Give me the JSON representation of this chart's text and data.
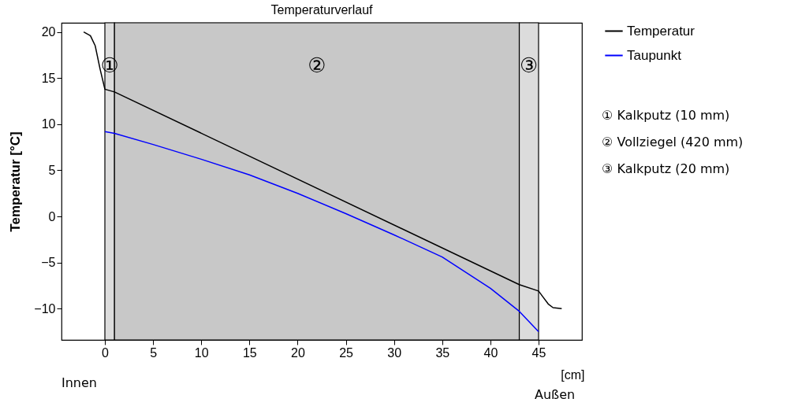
{
  "chart_data": {
    "type": "line",
    "title": "Temperaturverlauf",
    "xlabel": "[cm]",
    "ylabel": "Temperatur [°C]",
    "xlim": [
      -4.5,
      49.5
    ],
    "ylim": [
      -13.4,
      21
    ],
    "xticks": [
      0,
      5,
      10,
      15,
      20,
      25,
      30,
      35,
      40,
      45
    ],
    "yticks": [
      -10,
      -5,
      0,
      5,
      10,
      15,
      20
    ],
    "series": [
      {
        "name": "Temperatur",
        "color": "#000000",
        "x": [
          -2.2,
          -1.5,
          -1,
          -0.5,
          0,
          1,
          43,
          45,
          45.5,
          46,
          46.5,
          47.4
        ],
        "values": [
          20,
          19.6,
          18.5,
          16,
          13.8,
          13.5,
          -7.4,
          -8.1,
          -8.8,
          -9.5,
          -9.9,
          -10
        ]
      },
      {
        "name": "Taupunkt",
        "color": "#0000ff",
        "x": [
          0,
          1,
          5,
          10,
          15,
          20,
          25,
          30,
          35,
          40,
          43,
          45
        ],
        "values": [
          9.2,
          9,
          7.8,
          6.2,
          4.5,
          2.5,
          0.3,
          -2.0,
          -4.4,
          -7.8,
          -10.3,
          -12.5
        ]
      }
    ],
    "bands": [
      {
        "axis": "x",
        "from": 0,
        "to": 1,
        "label": "①",
        "color": "#dcdcdc"
      },
      {
        "axis": "x",
        "from": 1,
        "to": 43,
        "label": "②",
        "color": "#c8c8c8"
      },
      {
        "axis": "x",
        "from": 43,
        "to": 45,
        "label": "③",
        "color": "#dcdcdc"
      }
    ],
    "annotations": [
      "Innen",
      "Außen",
      "① Kalkputz (10 mm)",
      "② Vollziegel (420 mm)",
      "③ Kalkputz (20 mm)"
    ],
    "legend": "top right",
    "grid": false
  }
}
